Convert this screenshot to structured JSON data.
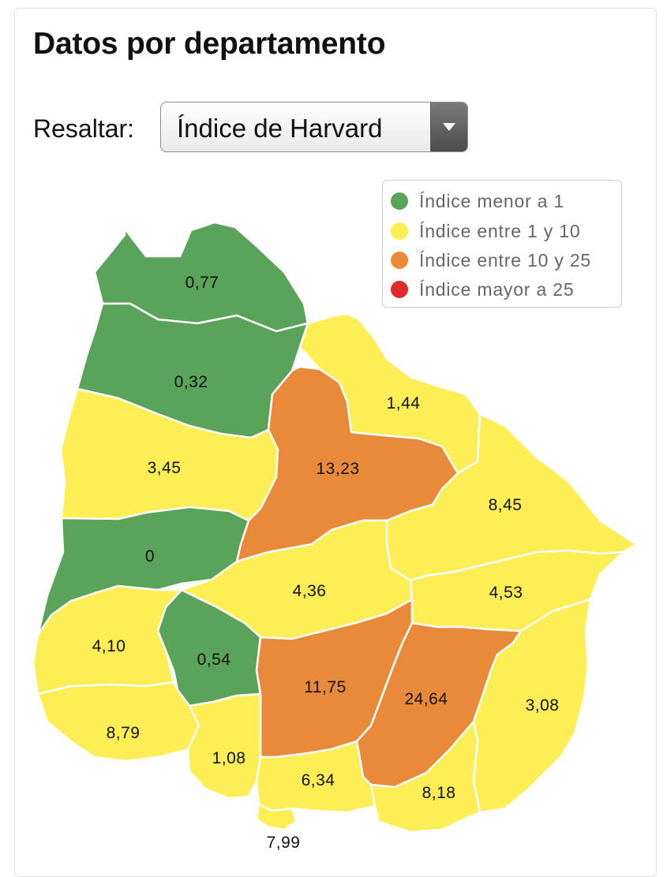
{
  "header": {
    "title": "Datos por departamento"
  },
  "highlight": {
    "label": "Resaltar:",
    "selected": "Índice de Harvard"
  },
  "legend": {
    "items": [
      {
        "label": "Índice menor a 1",
        "color": "#5aa35b"
      },
      {
        "label": "Índice entre 1 y 10",
        "color": "#fdee55"
      },
      {
        "label": "Índice entre 10 y 25",
        "color": "#e88a3a"
      },
      {
        "label": "Índice mayor a 25",
        "color": "#dd2c2c"
      }
    ]
  },
  "colors": {
    "green": "#5aa35b",
    "yellow": "#fdee55",
    "orange": "#e88a3a",
    "red": "#dd2c2c"
  },
  "departments": [
    {
      "value": "0,77",
      "category": "green"
    },
    {
      "value": "0,32",
      "category": "green"
    },
    {
      "value": "1,44",
      "category": "yellow"
    },
    {
      "value": "3,45",
      "category": "yellow"
    },
    {
      "value": "13,23",
      "category": "orange"
    },
    {
      "value": "8,45",
      "category": "yellow"
    },
    {
      "value": "0",
      "category": "green"
    },
    {
      "value": "4,36",
      "category": "yellow"
    },
    {
      "value": "4,53",
      "category": "yellow"
    },
    {
      "value": "4,10",
      "category": "yellow"
    },
    {
      "value": "0,54",
      "category": "green"
    },
    {
      "value": "11,75",
      "category": "orange"
    },
    {
      "value": "24,64",
      "category": "orange"
    },
    {
      "value": "3,08",
      "category": "yellow"
    },
    {
      "value": "8,79",
      "category": "yellow"
    },
    {
      "value": "1,08",
      "category": "yellow"
    },
    {
      "value": "6,34",
      "category": "yellow"
    },
    {
      "value": "8,18",
      "category": "yellow"
    },
    {
      "value": "7,99",
      "category": "yellow"
    }
  ]
}
